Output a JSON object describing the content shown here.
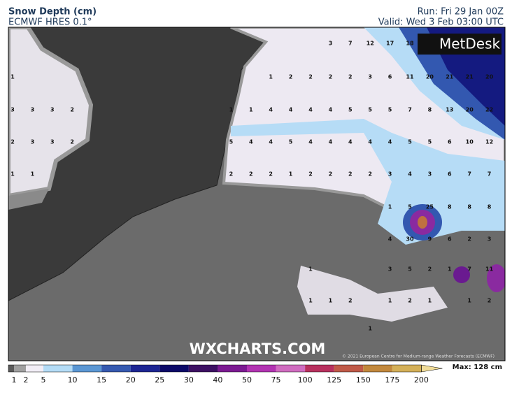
{
  "header": {
    "title": "Snow Depth (cm)",
    "model": "ECMWF HRES 0.1°",
    "run": "Run: Fri 29 Jan 00Z",
    "valid": "Valid: Wed 3 Feb 03:00 UTC"
  },
  "map": {
    "logo": "MetDesk",
    "watermark": "WXCHARTS.COM",
    "credit": "© 2021 European Centre for Medium-range Weather Forecasts (ECMWF)",
    "grid_labels": [
      [
        null,
        null,
        null,
        null,
        null,
        null,
        null,
        null,
        null,
        null,
        null,
        null,
        null,
        null,
        null,
        null,
        3,
        7,
        12,
        17,
        18,
        null,
        null,
        null,
        null
      ],
      [
        1,
        null,
        null,
        null,
        null,
        null,
        null,
        null,
        null,
        null,
        null,
        null,
        null,
        1,
        2,
        2,
        2,
        2,
        3,
        6,
        11,
        20,
        21,
        21,
        20
      ],
      [
        3,
        3,
        3,
        2,
        null,
        null,
        null,
        null,
        null,
        null,
        null,
        1,
        1,
        4,
        4,
        4,
        4,
        5,
        5,
        5,
        7,
        8,
        13,
        20,
        22
      ],
      [
        2,
        3,
        3,
        2,
        null,
        null,
        null,
        null,
        null,
        null,
        null,
        5,
        4,
        4,
        5,
        4,
        4,
        4,
        4,
        4,
        5,
        5,
        6,
        10,
        12
      ],
      [
        1,
        1,
        null,
        null,
        null,
        null,
        null,
        null,
        null,
        null,
        null,
        2,
        2,
        2,
        1,
        2,
        2,
        2,
        2,
        3,
        4,
        3,
        6,
        7,
        7
      ],
      [
        null,
        null,
        null,
        null,
        null,
        null,
        null,
        null,
        null,
        null,
        null,
        null,
        null,
        null,
        null,
        null,
        null,
        null,
        null,
        1,
        5,
        25,
        8,
        8,
        8
      ],
      [
        null,
        null,
        null,
        null,
        null,
        null,
        null,
        null,
        null,
        null,
        null,
        null,
        null,
        null,
        null,
        null,
        null,
        null,
        null,
        4,
        30,
        9,
        6,
        2,
        3
      ],
      [
        null,
        null,
        null,
        null,
        null,
        null,
        null,
        null,
        null,
        null,
        null,
        null,
        null,
        null,
        null,
        1,
        null,
        null,
        null,
        3,
        5,
        2,
        1,
        7,
        11
      ],
      [
        null,
        null,
        null,
        null,
        null,
        null,
        null,
        null,
        null,
        null,
        null,
        null,
        null,
        null,
        null,
        1,
        1,
        2,
        null,
        1,
        2,
        1,
        null,
        1,
        2
      ],
      [
        null,
        null,
        null,
        null,
        null,
        null,
        null,
        null,
        null,
        null,
        null,
        null,
        null,
        null,
        null,
        null,
        null,
        null,
        1,
        null,
        null,
        null,
        null,
        null,
        null
      ]
    ]
  },
  "colorbar": {
    "labels": [
      1,
      2,
      5,
      10,
      15,
      20,
      25,
      30,
      40,
      50,
      75,
      100,
      125,
      150,
      175,
      200
    ],
    "colors": [
      "#5a5a5a",
      "#a0a0a0",
      "#f2eef6",
      "#b4dcf6",
      "#5b97d4",
      "#3559b0",
      "#1d2593",
      "#0c0a68",
      "#3c1062",
      "#7c1a92",
      "#b233b2",
      "#d06cc0",
      "#b8305e",
      "#c05a48",
      "#c2883c",
      "#d4b058",
      "#f0dc98"
    ],
    "max": "Max: 128 cm"
  }
}
